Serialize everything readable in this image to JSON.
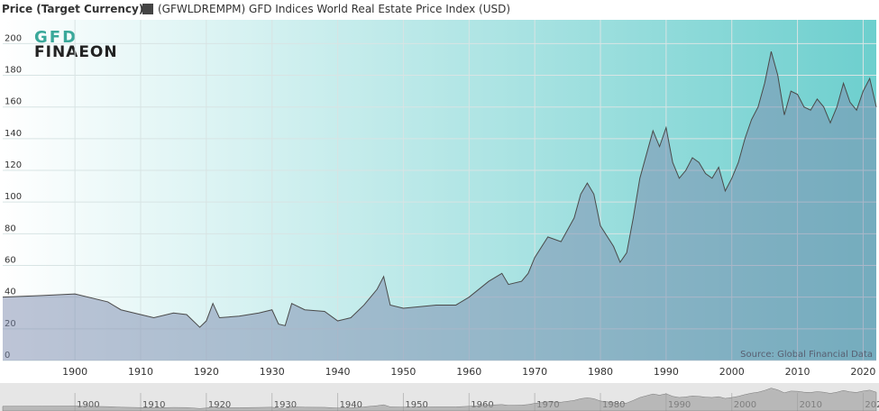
{
  "chart_data": {
    "type": "area",
    "title": "Price (Target Currency)",
    "annotations": [
      "Source: Global Financial Data"
    ],
    "logo": [
      "GFD",
      "FINAEON"
    ],
    "x": [
      1889,
      1895,
      1900,
      1905,
      1907,
      1910,
      1912,
      1915,
      1917,
      1919,
      1920,
      1921,
      1922,
      1925,
      1928,
      1930,
      1931,
      1932,
      1933,
      1935,
      1938,
      1940,
      1942,
      1944,
      1945,
      1946,
      1947,
      1948,
      1950,
      1955,
      1958,
      1960,
      1963,
      1965,
      1966,
      1968,
      1969,
      1970,
      1972,
      1974,
      1976,
      1977,
      1978,
      1979,
      1980,
      1982,
      1983,
      1984,
      1985,
      1986,
      1987,
      1988,
      1989,
      1990,
      1991,
      1992,
      1993,
      1994,
      1995,
      1996,
      1997,
      1998,
      1999,
      2000,
      2001,
      2002,
      2003,
      2004,
      2005,
      2006,
      2007,
      2008,
      2009,
      2010,
      2011,
      2012,
      2013,
      2014,
      2015,
      2016,
      2017,
      2018,
      2019,
      2020,
      2021,
      2022
    ],
    "series": [
      {
        "name": "(GFWLDREMPM) GFD Indices World Real Estate Price Index (USD)",
        "color": "#4a4a4a",
        "values": [
          40,
          41,
          42,
          37,
          32,
          29,
          27,
          30,
          29,
          21,
          25,
          36,
          27,
          28,
          30,
          32,
          23,
          22,
          36,
          32,
          31,
          25,
          27,
          35,
          40,
          45,
          53,
          35,
          33,
          35,
          35,
          40,
          50,
          55,
          48,
          50,
          55,
          65,
          78,
          75,
          90,
          105,
          112,
          105,
          85,
          72,
          62,
          68,
          90,
          115,
          130,
          145,
          135,
          147,
          125,
          115,
          120,
          128,
          125,
          118,
          115,
          122,
          107,
          115,
          125,
          140,
          152,
          160,
          175,
          195,
          180,
          155,
          170,
          168,
          160,
          158,
          165,
          160,
          150,
          160,
          175,
          163,
          158,
          170,
          178,
          160
        ]
      }
    ],
    "xlim": [
      1889,
      2022
    ],
    "ylim": [
      0,
      215
    ],
    "xticks": [
      1900,
      1910,
      1920,
      1930,
      1940,
      1950,
      1960,
      1970,
      1980,
      1990,
      2000,
      2010,
      2020
    ],
    "yticks": [
      0,
      20,
      40,
      60,
      80,
      100,
      120,
      140,
      160,
      180,
      200
    ],
    "grid": true
  }
}
